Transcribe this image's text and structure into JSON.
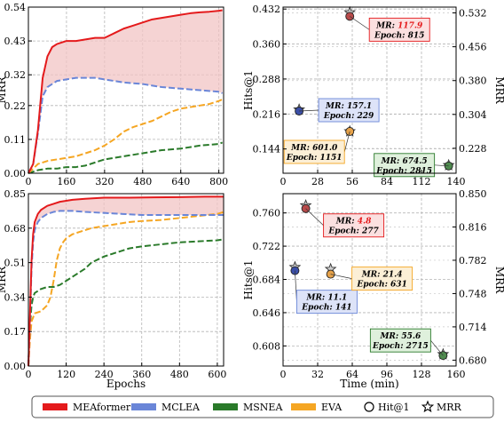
{
  "colors": {
    "meaformer": "#e41a1c",
    "mclea": "#6a86d8",
    "msnea": "#2a7a2a",
    "eva": "#f5a623",
    "fill": "#f2c4c4"
  },
  "legend": {
    "items": [
      {
        "label": "MEAformer",
        "key": "meaformer",
        "kind": "patch"
      },
      {
        "label": "MCLEA",
        "key": "mclea",
        "kind": "patch"
      },
      {
        "label": "MSNEA",
        "key": "msnea",
        "kind": "patch"
      },
      {
        "label": "EVA",
        "key": "eva",
        "kind": "patch"
      },
      {
        "label": "Hit@1",
        "kind": "circle"
      },
      {
        "label": "MRR",
        "kind": "star"
      }
    ]
  },
  "chart_data": [
    {
      "type": "line",
      "panel": "top-left",
      "xlabel": "",
      "ylabel": "MRR",
      "xlim": [
        0,
        820
      ],
      "ylim": [
        0,
        0.54
      ],
      "xticks": [
        0,
        160,
        320,
        480,
        640,
        800
      ],
      "yticks": [
        0.0,
        0.11,
        0.22,
        0.32,
        0.43,
        0.54
      ],
      "ytick_labels": [
        "0.00",
        "0.11",
        "0.22",
        "0.32",
        "0.43",
        "0.54"
      ],
      "grid": true,
      "fill_between": [
        "MEAformer",
        "MCLEA"
      ],
      "series": [
        {
          "name": "MEAformer",
          "key": "meaformer",
          "dash": "solid",
          "x": [
            0,
            20,
            40,
            60,
            80,
            100,
            120,
            140,
            160,
            200,
            240,
            280,
            320,
            360,
            400,
            440,
            480,
            520,
            560,
            600,
            640,
            680,
            720,
            760,
            800,
            815
          ],
          "y": [
            0,
            0.03,
            0.14,
            0.31,
            0.38,
            0.41,
            0.42,
            0.425,
            0.43,
            0.43,
            0.435,
            0.44,
            0.44,
            0.455,
            0.47,
            0.48,
            0.49,
            0.5,
            0.505,
            0.51,
            0.515,
            0.52,
            0.523,
            0.525,
            0.528,
            0.53
          ]
        },
        {
          "name": "MCLEA",
          "key": "mclea",
          "dash": "dash",
          "x": [
            0,
            20,
            40,
            60,
            80,
            100,
            120,
            160,
            200,
            229,
            280,
            320,
            360,
            400,
            480,
            560,
            640,
            720,
            800,
            815
          ],
          "y": [
            0,
            0.03,
            0.13,
            0.25,
            0.28,
            0.29,
            0.3,
            0.305,
            0.31,
            0.31,
            0.31,
            0.305,
            0.3,
            0.295,
            0.29,
            0.28,
            0.275,
            0.27,
            0.265,
            0.26
          ]
        },
        {
          "name": "MSNEA",
          "key": "msnea",
          "dash": "dash",
          "x": [
            0,
            40,
            80,
            120,
            160,
            200,
            240,
            280,
            320,
            400,
            480,
            560,
            640,
            720,
            800,
            815
          ],
          "y": [
            0,
            0.01,
            0.015,
            0.015,
            0.02,
            0.02,
            0.025,
            0.035,
            0.045,
            0.055,
            0.065,
            0.075,
            0.08,
            0.09,
            0.095,
            0.1
          ]
        },
        {
          "name": "EVA",
          "key": "eva",
          "dash": "dash",
          "x": [
            0,
            40,
            80,
            120,
            160,
            200,
            240,
            280,
            320,
            360,
            400,
            440,
            480,
            520,
            560,
            600,
            640,
            680,
            720,
            760,
            800,
            815
          ],
          "y": [
            0,
            0.03,
            0.04,
            0.045,
            0.05,
            0.055,
            0.065,
            0.075,
            0.09,
            0.11,
            0.135,
            0.15,
            0.16,
            0.17,
            0.185,
            0.2,
            0.21,
            0.215,
            0.22,
            0.225,
            0.235,
            0.24
          ]
        }
      ]
    },
    {
      "type": "scatter",
      "panel": "top-right",
      "xlabel": "",
      "ylabel": "Hits@1",
      "ylabel_right": "MRR",
      "xlim": [
        0,
        140
      ],
      "ylim": [
        0.094,
        0.436
      ],
      "xticks": [
        0,
        28,
        56,
        84,
        112,
        140
      ],
      "yticks": [
        0.144,
        0.216,
        0.288,
        0.36,
        0.432
      ],
      "ytick_labels": [
        "0.144",
        "0.216",
        "0.288",
        "0.360",
        "0.432"
      ],
      "y2lim": [
        0.172,
        0.545
      ],
      "y2ticks": [
        0.228,
        0.304,
        0.38,
        0.456,
        0.532
      ],
      "y2tick_labels": [
        "0.228",
        "0.304",
        "0.380",
        "0.456",
        "0.532"
      ],
      "grid": true,
      "points": [
        {
          "name": "MEAformer",
          "key": "meaformer",
          "time": 54,
          "hits1": 0.417,
          "mrr": 0.533,
          "mr_label": "MR: ",
          "mr_value": "117.9",
          "epoch_label": "Epoch: 815",
          "highlight": true,
          "box_dx": 22,
          "box_dy": 2
        },
        {
          "name": "MCLEA",
          "key": "mclea",
          "time": 13,
          "hits1": 0.222,
          "mrr": 0.315,
          "mr_label": "MR: ",
          "mr_value": "157.1",
          "epoch_label": "Epoch: 229",
          "highlight": false,
          "box_dx": 22,
          "box_dy": -14
        },
        {
          "name": "EVA",
          "key": "eva",
          "time": 54,
          "hits1": 0.18,
          "mrr": 0.266,
          "mr_label": "MR: ",
          "mr_value": "601.0",
          "epoch_label": "Epoch: 1151",
          "highlight": false,
          "box_dx": -74,
          "box_dy": 10
        },
        {
          "name": "MSNEA",
          "key": "msnea",
          "time": 134,
          "hits1": 0.109,
          "mrr": 0.19,
          "mr_label": "MR: ",
          "mr_value": "674.5",
          "epoch_label": "Epoch: 2815",
          "highlight": false,
          "box_dx": -84,
          "box_dy": -14
        }
      ]
    },
    {
      "type": "line",
      "panel": "bottom-left",
      "xlabel": "Epochs",
      "ylabel": "MRR",
      "xlim": [
        0,
        620
      ],
      "ylim": [
        0,
        0.85
      ],
      "xticks": [
        0,
        120,
        240,
        360,
        480,
        600
      ],
      "yticks": [
        0.0,
        0.17,
        0.34,
        0.51,
        0.68,
        0.85
      ],
      "ytick_labels": [
        "0.00",
        "0.17",
        "0.34",
        "0.51",
        "0.68",
        "0.85"
      ],
      "grid": true,
      "fill_between": [
        "MEAformer",
        "MCLEA"
      ],
      "series": [
        {
          "name": "MEAformer",
          "key": "meaformer",
          "dash": "solid",
          "x": [
            0,
            5,
            10,
            15,
            20,
            30,
            40,
            60,
            80,
            100,
            140,
            180,
            240,
            277,
            320,
            400,
            480,
            560,
            620
          ],
          "y": [
            0,
            0.25,
            0.52,
            0.65,
            0.71,
            0.75,
            0.77,
            0.79,
            0.8,
            0.81,
            0.82,
            0.825,
            0.83,
            0.83,
            0.83,
            0.832,
            0.833,
            0.835,
            0.835
          ]
        },
        {
          "name": "MCLEA",
          "key": "mclea",
          "dash": "dash",
          "x": [
            0,
            5,
            10,
            15,
            20,
            30,
            40,
            60,
            80,
            100,
            141,
            180,
            240,
            300,
            360,
            420,
            480,
            540,
            600,
            620
          ],
          "y": [
            0,
            0.22,
            0.48,
            0.61,
            0.67,
            0.71,
            0.73,
            0.75,
            0.76,
            0.765,
            0.765,
            0.76,
            0.755,
            0.75,
            0.745,
            0.745,
            0.745,
            0.745,
            0.745,
            0.745
          ]
        },
        {
          "name": "MSNEA",
          "key": "msnea",
          "dash": "dash",
          "x": [
            0,
            5,
            10,
            15,
            20,
            40,
            60,
            80,
            100,
            120,
            140,
            160,
            180,
            200,
            240,
            280,
            320,
            360,
            420,
            480,
            540,
            600,
            620
          ],
          "y": [
            0,
            0.2,
            0.3,
            0.34,
            0.36,
            0.38,
            0.39,
            0.39,
            0.4,
            0.42,
            0.44,
            0.46,
            0.48,
            0.51,
            0.54,
            0.56,
            0.58,
            0.59,
            0.6,
            0.61,
            0.615,
            0.62,
            0.625
          ]
        },
        {
          "name": "EVA",
          "key": "eva",
          "dash": "dash",
          "x": [
            0,
            5,
            10,
            20,
            40,
            60,
            70,
            80,
            90,
            100,
            110,
            120,
            140,
            160,
            180,
            200,
            240,
            280,
            320,
            360,
            420,
            480,
            540,
            600,
            620
          ],
          "y": [
            0,
            0.13,
            0.22,
            0.26,
            0.27,
            0.3,
            0.34,
            0.42,
            0.52,
            0.58,
            0.61,
            0.63,
            0.65,
            0.66,
            0.67,
            0.68,
            0.69,
            0.7,
            0.71,
            0.715,
            0.72,
            0.73,
            0.74,
            0.75,
            0.76
          ]
        }
      ]
    },
    {
      "type": "scatter",
      "panel": "bottom-right",
      "xlabel": "Time (min)",
      "ylabel": "Hits@1",
      "ylabel_right": "MRR",
      "xlim": [
        0,
        160
      ],
      "ylim": [
        0.585,
        0.782
      ],
      "xticks": [
        0,
        32,
        64,
        96,
        128,
        160
      ],
      "yticks": [
        0.608,
        0.646,
        0.684,
        0.722,
        0.76
      ],
      "ytick_labels": [
        "0.608",
        "0.646",
        "0.684",
        "0.722",
        "0.760"
      ],
      "y2lim": [
        0.674,
        0.85
      ],
      "y2ticks": [
        0.68,
        0.714,
        0.748,
        0.782,
        0.816,
        0.85
      ],
      "y2tick_labels": [
        "0.680",
        "0.714",
        "0.748",
        "0.782",
        "0.816",
        "0.850"
      ],
      "grid": true,
      "points": [
        {
          "name": "MEAformer",
          "key": "meaformer",
          "time": 21,
          "hits1": 0.765,
          "mrr": 0.838,
          "mr_label": "MR: ",
          "mr_value": "4.8",
          "epoch_label": "Epoch: 277",
          "highlight": true,
          "box_dx": 20,
          "box_dy": 6
        },
        {
          "name": "MCLEA",
          "key": "mclea",
          "time": 11,
          "hits1": 0.694,
          "mrr": 0.775,
          "mr_label": "MR: ",
          "mr_value": "11.1",
          "epoch_label": "Epoch: 141",
          "highlight": false,
          "box_dx": 2,
          "box_dy": 22
        },
        {
          "name": "EVA",
          "key": "eva",
          "time": 44,
          "hits1": 0.69,
          "mrr": 0.773,
          "mr_label": "MR: ",
          "mr_value": "21.4",
          "epoch_label": "Epoch: 631",
          "highlight": false,
          "box_dx": 24,
          "box_dy": -8
        },
        {
          "name": "MSNEA",
          "key": "msnea",
          "time": 148,
          "hits1": 0.597,
          "mrr": 0.686,
          "mr_label": "MR: ",
          "mr_value": "55.6",
          "epoch_label": "Epoch: 2715",
          "highlight": false,
          "box_dx": -82,
          "box_dy": -30
        }
      ]
    }
  ]
}
